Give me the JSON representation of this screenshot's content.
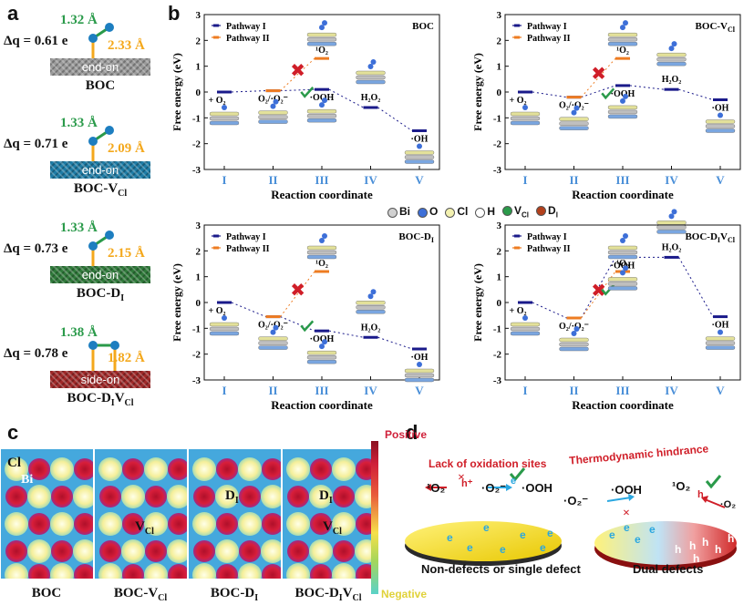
{
  "panels": {
    "a": "a",
    "b": "b",
    "c": "c",
    "d": "d"
  },
  "panel_a": {
    "items": [
      {
        "dq": "Δq = 0.61 e",
        "bond1": "1.32 Å",
        "bond2": "2.33 Å",
        "mode": "end-on",
        "sample": "BOC",
        "sub": "",
        "bar_color": "#9a9a9a"
      },
      {
        "dq": "Δq = 0.71 e",
        "bond1": "1.33 Å",
        "bond2": "2.09 Å",
        "mode": "end-on",
        "sample": "BOC-V",
        "sub": "Cl",
        "bar_color": "#1d7ca6"
      },
      {
        "dq": "Δq = 0.73 e",
        "bond1": "1.33 Å",
        "bond2": "2.15 Å",
        "mode": "end-on",
        "sample": "BOC-D",
        "sub": "I",
        "bar_color": "#2f7a3a"
      },
      {
        "dq": "Δq = 0.78 e",
        "bond1": "1.38 Å",
        "bond2": "1.82 Å",
        "mode": "side-on",
        "sample": "BOC-D",
        "sub": "I",
        "sample2": "V",
        "sub2": "Cl",
        "bar_color": "#a02828"
      }
    ]
  },
  "legend_atoms": [
    {
      "label": "Bi",
      "color": "#d0d0d0"
    },
    {
      "label": "O",
      "color": "#3d6fd8"
    },
    {
      "label": "Cl",
      "color": "#f3f1b0"
    },
    {
      "label": "H",
      "color": "#ffffff"
    },
    {
      "label": "V",
      "sub": "Cl",
      "color": "#2a9a4a"
    },
    {
      "label": "D",
      "sub": "I",
      "color": "#b3401c"
    }
  ],
  "chart_data": [
    {
      "type": "line",
      "title": "BOC",
      "xlabel": "Reaction coordinate",
      "ylabel": "Free energy (eV)",
      "categories": [
        "I",
        "II",
        "III",
        "IV",
        "V"
      ],
      "ylim": [
        -3,
        3
      ],
      "yticks": [
        -3,
        -2,
        -1,
        0,
        1,
        2,
        3
      ],
      "series": [
        {
          "name": "Pathway I",
          "color": "#1a1a8a",
          "x": [
            0,
            1,
            2,
            3,
            4
          ],
          "values": [
            0.0,
            0.05,
            0.1,
            -0.6,
            -1.5
          ]
        },
        {
          "name": "Pathway II",
          "color": "#ee7c22",
          "x": [
            1,
            2
          ],
          "values": [
            0.05,
            1.3
          ]
        }
      ],
      "labels": [
        "+ O₂",
        "O₂/·O₂⁻",
        "·OOH",
        "H₂O₂",
        "·OH",
        "¹O₂"
      ]
    },
    {
      "type": "line",
      "title": "BOC-VCl",
      "xlabel": "Reaction coordinate",
      "ylabel": "Free energy (eV)",
      "categories": [
        "I",
        "II",
        "III",
        "IV",
        "V"
      ],
      "ylim": [
        -3,
        3
      ],
      "yticks": [
        -3,
        -2,
        -1,
        0,
        1,
        2,
        3
      ],
      "series": [
        {
          "name": "Pathway I",
          "color": "#1a1a8a",
          "x": [
            0,
            1,
            2,
            3,
            4
          ],
          "values": [
            0.0,
            -0.2,
            0.25,
            0.1,
            -0.3
          ]
        },
        {
          "name": "Pathway II",
          "color": "#ee7c22",
          "x": [
            1,
            2
          ],
          "values": [
            -0.2,
            1.3
          ]
        }
      ],
      "labels": [
        "+ O₂",
        "O₂/·O₂⁻",
        "·OOH",
        "H₂O₂",
        "·OH",
        "¹O₂"
      ]
    },
    {
      "type": "line",
      "title": "BOC-DI",
      "xlabel": "Reaction coordinate",
      "ylabel": "Free energy (eV)",
      "categories": [
        "I",
        "II",
        "III",
        "IV",
        "V"
      ],
      "ylim": [
        -3,
        3
      ],
      "yticks": [
        -3,
        -2,
        -1,
        0,
        1,
        2,
        3
      ],
      "series": [
        {
          "name": "Pathway I",
          "color": "#1a1a8a",
          "x": [
            0,
            1,
            2,
            3,
            4
          ],
          "values": [
            0.0,
            -0.55,
            -1.1,
            -1.35,
            -1.8
          ]
        },
        {
          "name": "Pathway II",
          "color": "#ee7c22",
          "x": [
            1,
            2
          ],
          "values": [
            -0.55,
            1.2
          ]
        }
      ],
      "labels": [
        "+ O₂",
        "O₂/·O₂⁻",
        "·OOH",
        "H₂O₂",
        "·OH",
        "¹O₂"
      ]
    },
    {
      "type": "line",
      "title": "BOC-DIVCl",
      "xlabel": "Reaction coordinate",
      "ylabel": "Free energy (eV)",
      "categories": [
        "I",
        "II",
        "III",
        "IV",
        "V"
      ],
      "ylim": [
        -3,
        3
      ],
      "yticks": [
        -3,
        -2,
        -1,
        0,
        1,
        2,
        3
      ],
      "series": [
        {
          "name": "Pathway I",
          "color": "#1a1a8a",
          "x": [
            0,
            1,
            2,
            3,
            4
          ],
          "values": [
            0.0,
            -0.6,
            1.75,
            1.75,
            -0.55
          ]
        },
        {
          "name": "Pathway II",
          "color": "#ee7c22",
          "x": [
            1,
            2
          ],
          "values": [
            -0.6,
            1.2
          ]
        }
      ],
      "labels": [
        "+ O₂",
        "O₂/·O₂⁻",
        "·OOH",
        "H₂O₂",
        "·OH",
        "¹O₂"
      ]
    }
  ],
  "panel_c": {
    "colorbar_top": "Positive",
    "colorbar_bottom": "Negative",
    "atom_labels": {
      "cl": "Cl",
      "bi": "Bi"
    },
    "maps": [
      {
        "name": "BOC",
        "sub": "",
        "marks": []
      },
      {
        "name": "BOC-V",
        "sub": "Cl",
        "marks": [
          {
            "t": "V",
            "s": "Cl"
          }
        ]
      },
      {
        "name": "BOC-D",
        "sub": "I",
        "marks": [
          {
            "t": "D",
            "s": "I"
          }
        ]
      },
      {
        "name": "BOC-D",
        "sub": "I",
        "name2": "V",
        "sub2": "Cl",
        "marks": [
          {
            "t": "D",
            "s": "I"
          },
          {
            "t": "V",
            "s": "Cl"
          }
        ]
      }
    ]
  },
  "panel_d": {
    "left_header": "Lack of oxidation sites",
    "right_header": "Thermodynamic hindrance",
    "left_caption": "Non-defects or single defect",
    "right_caption": "Dual defects",
    "singlet_o2": "¹O₂",
    "superoxide": "·O₂⁻",
    "ooh": "·OOH",
    "hole": "h⁺",
    "electron": "e⁻",
    "e": "e",
    "h": "h",
    "o2": "·O₂"
  }
}
